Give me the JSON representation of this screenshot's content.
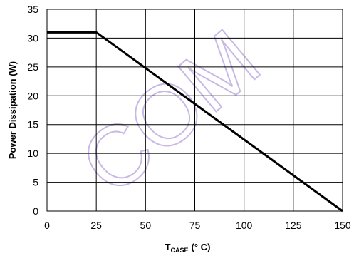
{
  "chart_data": {
    "type": "line",
    "title": "",
    "xlabel": {
      "main": "T",
      "sub": "CASE",
      "unit": "(° C)"
    },
    "ylabel": "Power Dissipation (W)",
    "xlim": [
      0,
      150
    ],
    "ylim": [
      0,
      35
    ],
    "xticks": [
      0,
      25,
      50,
      75,
      100,
      125,
      150
    ],
    "yticks": [
      0,
      5,
      10,
      15,
      20,
      25,
      30,
      35
    ],
    "grid": true,
    "series": [
      {
        "x": [
          0,
          25,
          150
        ],
        "y": [
          31,
          31,
          0
        ],
        "color": "#000000"
      }
    ],
    "watermark": {
      "text": "COM",
      "color": "#c9b8e6"
    }
  }
}
